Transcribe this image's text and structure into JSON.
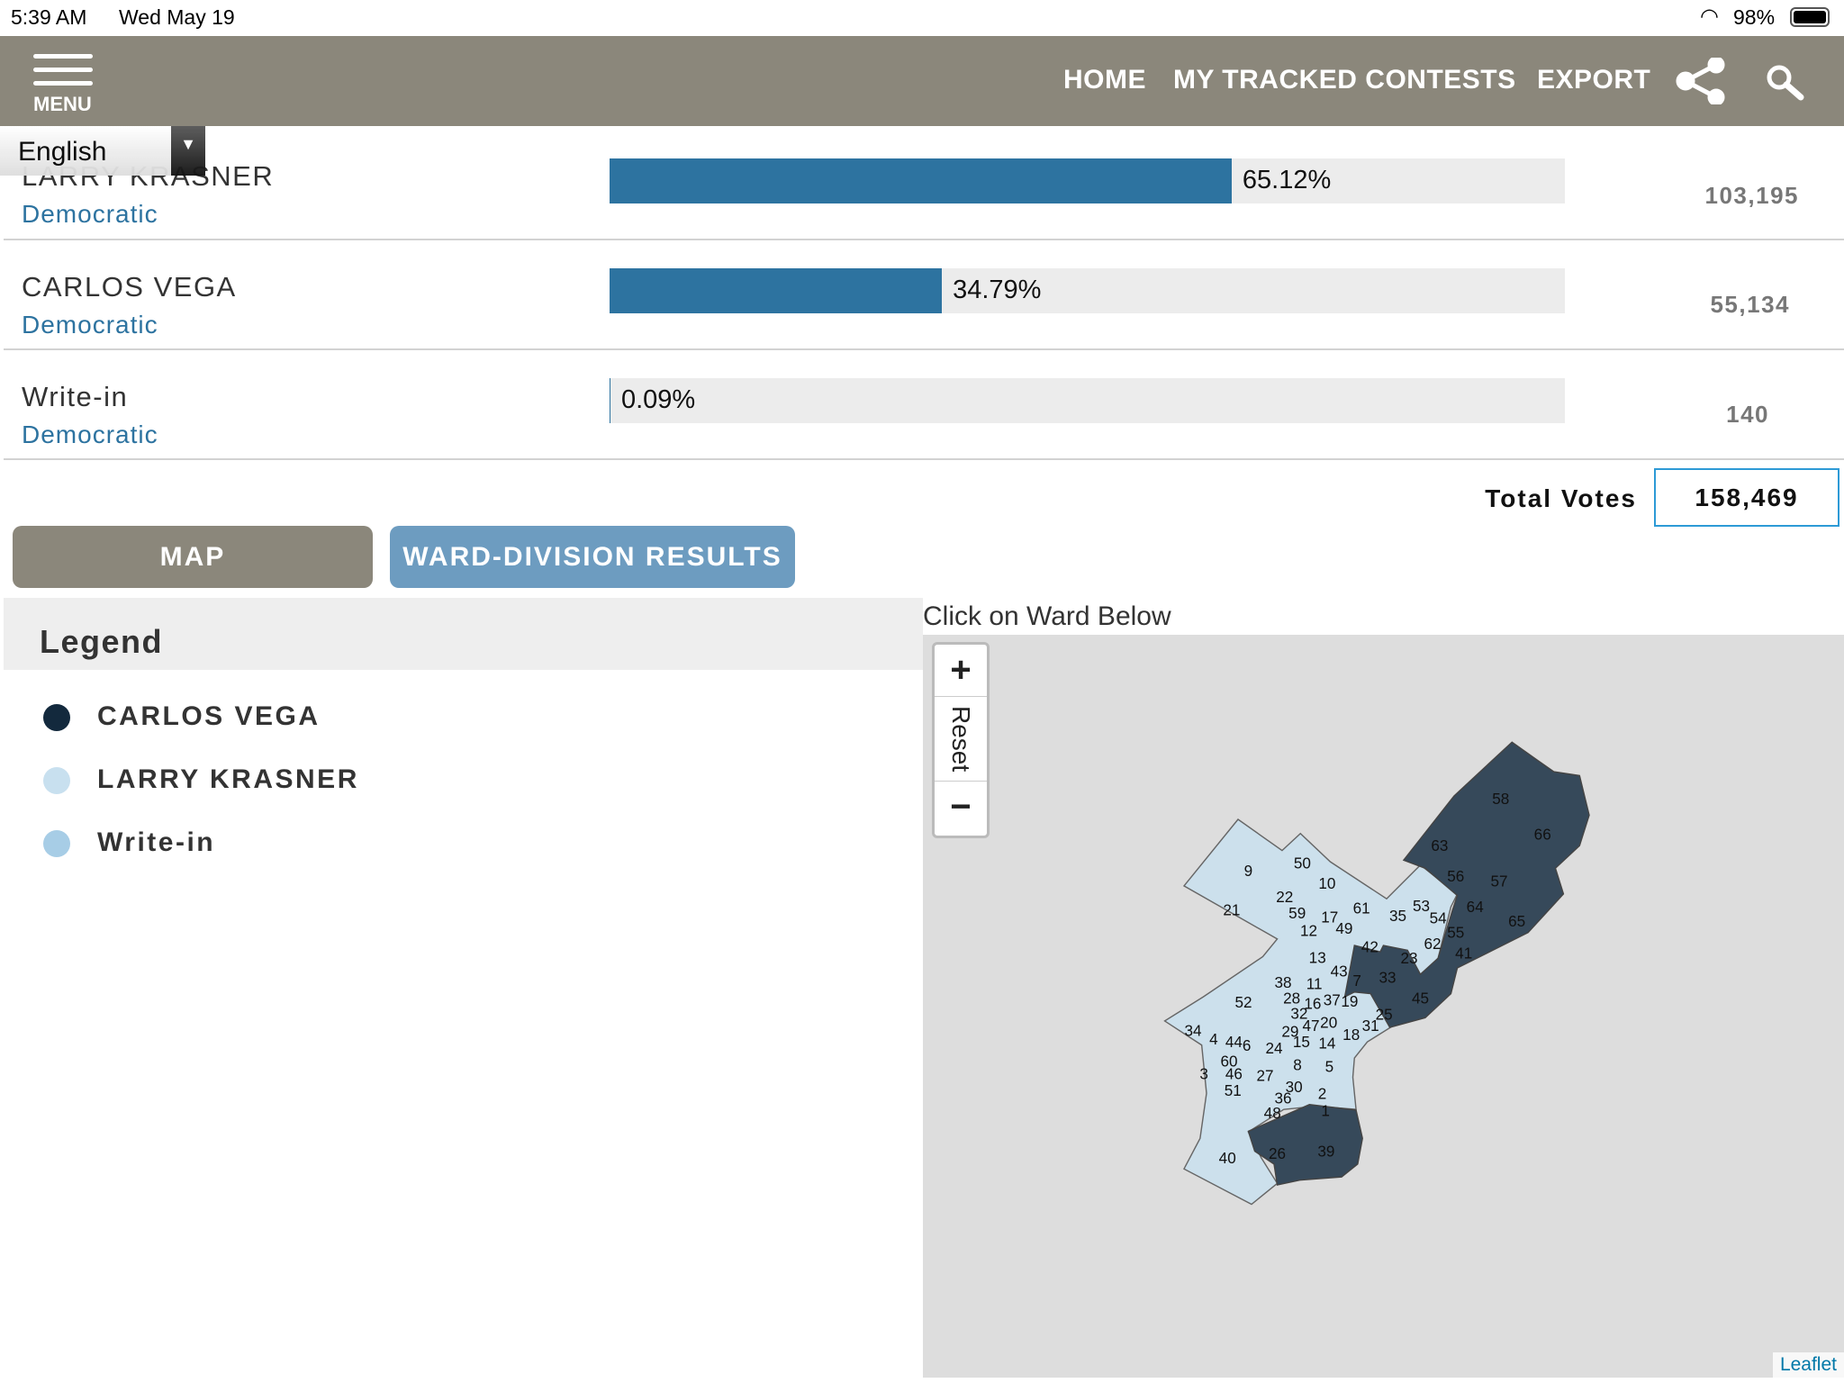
{
  "status": {
    "time": "5:39 AM",
    "date": "Wed May 19",
    "battery": "98%"
  },
  "header": {
    "menu_label": "MENU",
    "nav": [
      "HOME",
      "MY TRACKED CONTESTS",
      "EXPORT"
    ]
  },
  "language": {
    "selected": "English"
  },
  "candidates": [
    {
      "name": "LARRY KRASNER",
      "party": "Democratic",
      "percent": 65.12,
      "percent_label": "65.12%",
      "votes": "103,195"
    },
    {
      "name": "CARLOS VEGA",
      "party": "Democratic",
      "percent": 34.79,
      "percent_label": "34.79%",
      "votes": "55,134"
    },
    {
      "name": "Write-in",
      "party": "Democratic",
      "percent": 0.09,
      "percent_label": "0.09%",
      "votes": "140"
    }
  ],
  "total": {
    "label": "Total Votes",
    "value": "158,469"
  },
  "tabs": {
    "map": "MAP",
    "ward": "WARD-DIVISION RESULTS"
  },
  "legend": {
    "title": "Legend",
    "items": [
      {
        "label": "CARLOS VEGA",
        "color": "#13293d"
      },
      {
        "label": "LARRY KRASNER",
        "color": "#c8e0ef"
      },
      {
        "label": "Write-in",
        "color": "#a7cde6"
      }
    ]
  },
  "map": {
    "caption": "Click on Ward Below",
    "zoom_in": "+",
    "reset": "Reset",
    "zoom_out": "−",
    "attribution": "Leaflet",
    "wards": [
      [
        "58",
        1195,
        245,
        1
      ],
      [
        "66",
        1325,
        355,
        1
      ],
      [
        "63",
        1005,
        390,
        1
      ],
      [
        "56",
        1055,
        485,
        1
      ],
      [
        "57",
        1190,
        500,
        1
      ],
      [
        "64",
        1115,
        580,
        1
      ],
      [
        "65",
        1245,
        625,
        1
      ],
      [
        "54",
        1000,
        615,
        1
      ],
      [
        "53",
        948,
        578,
        0
      ],
      [
        "35",
        875,
        608,
        0
      ],
      [
        "55",
        1055,
        660,
        1
      ],
      [
        "62",
        983,
        695,
        1
      ],
      [
        "41",
        1080,
        725,
        1
      ],
      [
        "23",
        910,
        740,
        0
      ],
      [
        "42",
        788,
        705,
        0
      ],
      [
        "33",
        843,
        800,
        1
      ],
      [
        "45",
        945,
        865,
        1
      ],
      [
        "7",
        748,
        810,
        1
      ],
      [
        "19",
        725,
        875,
        0
      ],
      [
        "25",
        832,
        915,
        0
      ],
      [
        "31",
        790,
        950,
        0
      ],
      [
        "18",
        730,
        978,
        0
      ],
      [
        "61",
        762,
        585,
        0
      ],
      [
        "49",
        708,
        648,
        0
      ],
      [
        "17",
        663,
        612,
        0
      ],
      [
        "12",
        598,
        655,
        0
      ],
      [
        "59",
        562,
        600,
        0
      ],
      [
        "22",
        523,
        550,
        0
      ],
      [
        "10",
        655,
        508,
        0
      ],
      [
        "50",
        578,
        445,
        0
      ],
      [
        "9",
        410,
        468,
        0
      ],
      [
        "21",
        358,
        590,
        0
      ],
      [
        "13",
        625,
        738,
        0
      ],
      [
        "43",
        692,
        780,
        0
      ],
      [
        "11",
        615,
        820,
        0
      ],
      [
        "38",
        518,
        815,
        0
      ],
      [
        "28",
        545,
        865,
        0
      ],
      [
        "16",
        610,
        882,
        0
      ],
      [
        "37",
        670,
        870,
        0
      ],
      [
        "52",
        395,
        877,
        0
      ],
      [
        "32",
        568,
        912,
        0
      ],
      [
        "20",
        660,
        940,
        0
      ],
      [
        "47",
        605,
        950,
        0
      ],
      [
        "29",
        540,
        968,
        0
      ],
      [
        "15",
        575,
        1000,
        0
      ],
      [
        "14",
        655,
        1005,
        0
      ],
      [
        "34",
        238,
        965,
        0
      ],
      [
        "4",
        302,
        992,
        0
      ],
      [
        "44",
        365,
        1000,
        0
      ],
      [
        "6",
        405,
        1012,
        0
      ],
      [
        "24",
        490,
        1020,
        0
      ],
      [
        "60",
        350,
        1060,
        0
      ],
      [
        "8",
        563,
        1072,
        0
      ],
      [
        "5",
        662,
        1078,
        0
      ],
      [
        "3",
        272,
        1100,
        0
      ],
      [
        "46",
        365,
        1100,
        0
      ],
      [
        "27",
        462,
        1105,
        0
      ],
      [
        "30",
        552,
        1140,
        0
      ],
      [
        "51",
        362,
        1152,
        0
      ],
      [
        "2",
        640,
        1162,
        0
      ],
      [
        "36",
        518,
        1175,
        0
      ],
      [
        "1",
        650,
        1215,
        0
      ],
      [
        "48",
        485,
        1222,
        0
      ],
      [
        "40",
        345,
        1362,
        0
      ],
      [
        "26",
        500,
        1348,
        1
      ],
      [
        "39",
        652,
        1340,
        1
      ]
    ]
  }
}
